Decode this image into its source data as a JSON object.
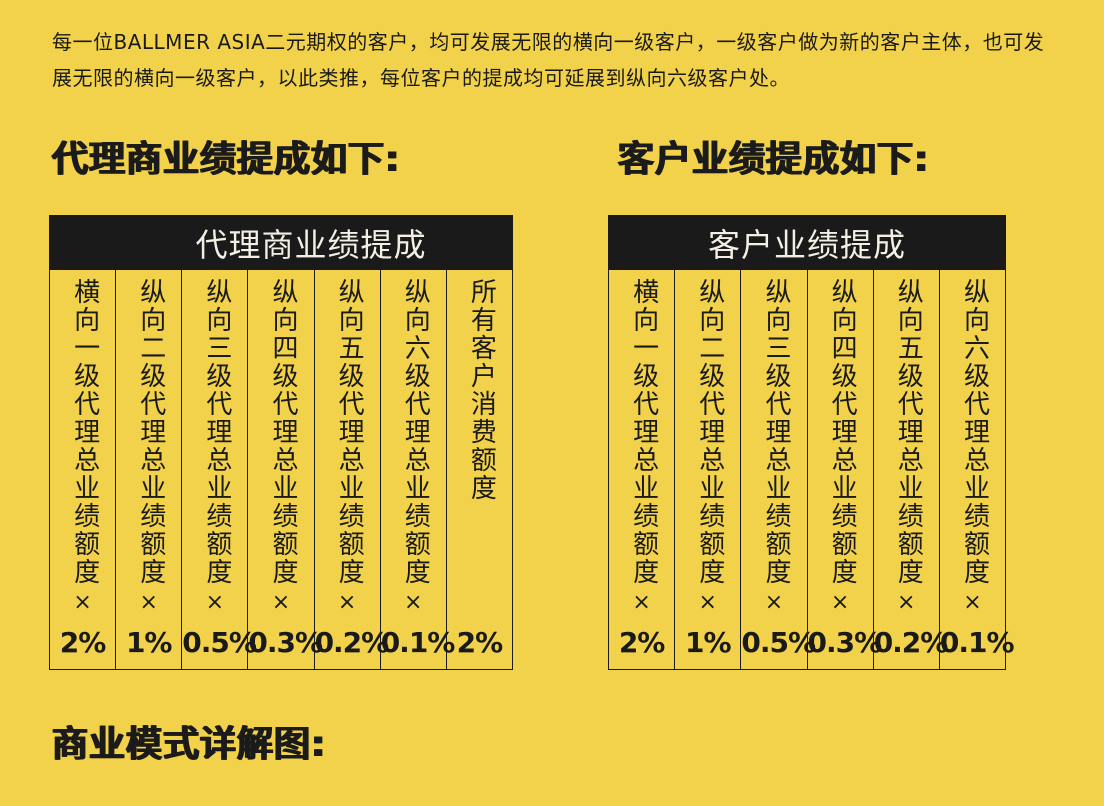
{
  "intro": "每一位BALLMER ASIA二元期权的客户，均可发展无限的横向一级客户，一级客户做为新的客户主体，也可发展无限的横向一级客户，以此类推，每位客户的提成均可延展到纵向六级客户处。",
  "headings": {
    "agent": "代理商业绩提成如下:",
    "customer": "客户业绩提成如下:",
    "model": "商业模式详解图:"
  },
  "multiply_sign": "×",
  "agent_table": {
    "title": "代理商业绩提成",
    "columns": [
      {
        "label": "横向一级代理总业绩额度",
        "rate": "2%"
      },
      {
        "label": "纵向二级代理总业绩额度",
        "rate": "1%"
      },
      {
        "label": "纵向三级代理总业绩额度",
        "rate": "0.5%"
      },
      {
        "label": "纵向四级代理总业绩额度",
        "rate": "0.3%"
      },
      {
        "label": "纵向五级代理总业绩额度",
        "rate": "0.2%"
      },
      {
        "label": "纵向六级代理总业绩额度",
        "rate": "0.1%"
      },
      {
        "label": "所有客户消费额度",
        "rate": "2%"
      }
    ]
  },
  "customer_table": {
    "title": "客户业绩提成",
    "columns": [
      {
        "label": "横向一级代理总业绩额度",
        "rate": "2%"
      },
      {
        "label": "纵向二级代理总业绩额度",
        "rate": "1%"
      },
      {
        "label": "纵向三级代理总业绩额度",
        "rate": "0.5%"
      },
      {
        "label": "纵向四级代理总业绩额度",
        "rate": "0.3%"
      },
      {
        "label": "纵向五级代理总业绩额度",
        "rate": "0.2%"
      },
      {
        "label": "纵向六级代理总业绩额度",
        "rate": "0.1%"
      }
    ]
  }
}
